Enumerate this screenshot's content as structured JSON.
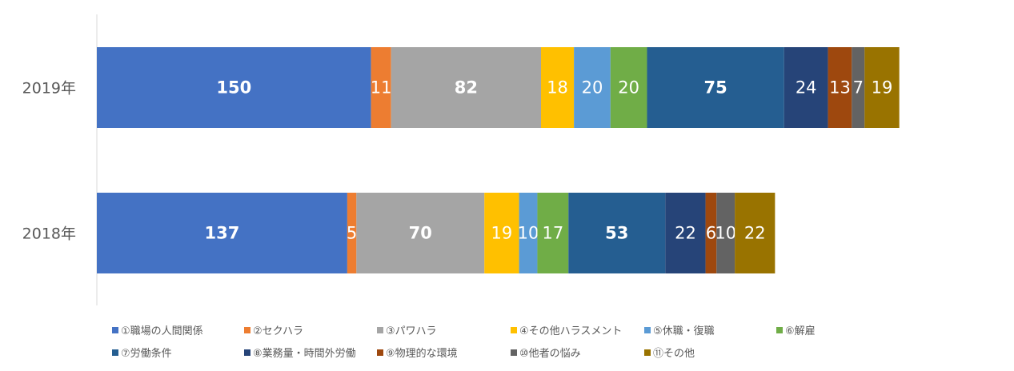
{
  "chart_data": {
    "type": "bar",
    "orientation": "horizontal",
    "stacked": true,
    "title": "",
    "xlabel": "",
    "ylabel": "",
    "categories": [
      "2019年",
      "2018年"
    ],
    "series": [
      {
        "name": "①職場の人間関係",
        "color": "#4472C4",
        "values": [
          150,
          137
        ],
        "bold": true
      },
      {
        "name": "②セクハラ",
        "color": "#ED7D31",
        "values": [
          11,
          5
        ],
        "bold": false
      },
      {
        "name": "③パワハラ",
        "color": "#A5A5A5",
        "values": [
          82,
          70
        ],
        "bold": true
      },
      {
        "name": "④その他ハラスメント",
        "color": "#FFC000",
        "values": [
          18,
          19
        ],
        "bold": false
      },
      {
        "name": "⑤休職・復職",
        "color": "#5B9BD5",
        "values": [
          20,
          10
        ],
        "bold": false
      },
      {
        "name": "⑥解雇",
        "color": "#70AD47",
        "values": [
          20,
          17
        ],
        "bold": false
      },
      {
        "name": "⑦労働条件",
        "color": "#255E91",
        "values": [
          75,
          53
        ],
        "bold": true
      },
      {
        "name": "⑧業務量・時間外労働",
        "color": "#264478",
        "values": [
          24,
          22
        ],
        "bold": false
      },
      {
        "name": "⑨物理的な環境",
        "color": "#9E480E",
        "values": [
          13,
          6
        ],
        "bold": false
      },
      {
        "name": "⑩他者の悩み",
        "color": "#636363",
        "values": [
          7,
          10
        ],
        "bold": false
      },
      {
        "name": "⑪その他",
        "color": "#997300",
        "values": [
          19,
          22
        ],
        "bold": false
      }
    ],
    "xlim": [
      0,
      520
    ],
    "grid": false,
    "legend_position": "bottom"
  }
}
